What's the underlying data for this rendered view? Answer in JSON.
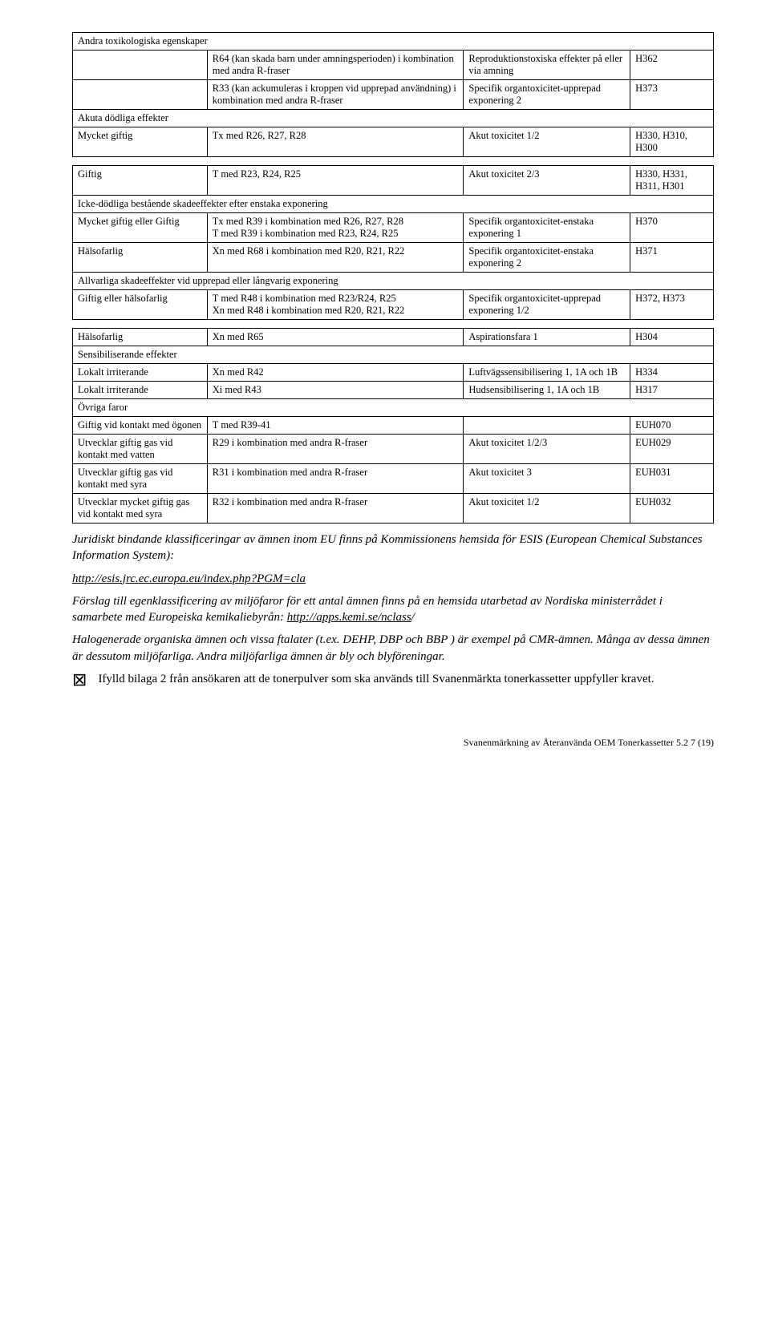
{
  "table1": {
    "header": "Andra toxikologiska egenskaper",
    "rows": [
      {
        "c1": "",
        "c2": "R64 (kan skada barn under amningsperioden) i kombination med andra R-fraser",
        "c3": "Reproduktionstoxiska effekter på eller via amning",
        "c4": "H362"
      },
      {
        "c1": "",
        "c2": "R33 (kan ackumuleras i kroppen vid upprepad användning) i kombination med andra R-fraser",
        "c3": "Specifik organtoxicitet-upprepad exponering 2",
        "c4": "H373"
      }
    ],
    "subheader": "Akuta dödliga effekter",
    "row_sub": {
      "c1": "Mycket giftig",
      "c2": "Tx med R26, R27, R28",
      "c3": "Akut toxicitet 1/2",
      "c4": "H330, H310, H300"
    }
  },
  "table2": {
    "rows": [
      {
        "c1": "Giftig",
        "c2": "T med R23, R24, R25",
        "c3": "Akut toxicitet 2/3",
        "c4": "H330, H331, H311, H301"
      }
    ],
    "subheader": "Icke-dödliga bestående skadeeffekter efter enstaka exponering",
    "rows2": [
      {
        "c1": "Mycket giftig eller Giftig",
        "c2": "Tx med R39 i kombination med R26, R27, R28\nT med R39 i kombination med R23, R24, R25",
        "c3": "Specifik organtoxicitet-enstaka exponering 1",
        "c4": "H370"
      },
      {
        "c1": "Hälsofarlig",
        "c2": "Xn med R68 i kombination med R20, R21, R22",
        "c3": "Specifik organtoxicitet-enstaka exponering 2",
        "c4": "H371"
      }
    ],
    "subheader2": "Allvarliga skadeeffekter vid upprepad eller långvarig exponering",
    "rows3": [
      {
        "c1": "Giftig eller hälsofarlig",
        "c2": "T med R48 i kombination med R23/R24, R25\nXn med R48 i kombination med R20, R21, R22",
        "c3": "Specifik organtoxicitet-upprepad exponering 1/2",
        "c4": "H372, H373"
      }
    ]
  },
  "table3": {
    "rows": [
      {
        "c1": "Hälsofarlig",
        "c2": "Xn med R65",
        "c3": "Aspirationsfara 1",
        "c4": "H304"
      }
    ],
    "subheader": "Sensibiliserande effekter",
    "rows2": [
      {
        "c1": "Lokalt irriterande",
        "c2": "Xn med R42",
        "c3": "Luftvägssensibilisering 1, 1A och 1B",
        "c4": "H334"
      },
      {
        "c1": "Lokalt irriterande",
        "c2": "Xi med R43",
        "c3": "Hudsensibilisering 1, 1A och 1B",
        "c4": "H317"
      }
    ],
    "subheader2": "Övriga faror",
    "rows3": [
      {
        "c1": "Giftig vid kontakt med ögonen",
        "c2": "T med R39-41",
        "c3": "",
        "c4": "EUH070"
      },
      {
        "c1": "Utvecklar giftig gas vid kontakt med vatten",
        "c2": "R29 i kombination med andra R-fraser",
        "c3": "Akut toxicitet 1/2/3",
        "c4": "EUH029"
      },
      {
        "c1": "Utvecklar giftig gas vid kontakt med syra",
        "c2": "R31 i kombination med andra R-fraser",
        "c3": "Akut toxicitet 3",
        "c4": "EUH031"
      },
      {
        "c1": "Utvecklar mycket giftig gas vid kontakt med syra",
        "c2": "R32 i kombination med andra R-fraser",
        "c3": "Akut toxicitet 1/2",
        "c4": "EUH032"
      }
    ]
  },
  "body": {
    "p1": "Juridiskt bindande klassificeringar av ämnen inom EU finns på Kommissionens hemsida för ESIS (European Chemical Substances Information System):",
    "link1": "http://esis.jrc.ec.europa.eu/index.php?PGM=cla",
    "p2a": "Förslag till egenklassificering av miljöfaror för ett antal ämnen finns på en hemsida utarbetad av Nordiska ministerrådet i samarbete med Europeiska kemikaliebyrån: ",
    "link2": "http://apps.kemi.se/nclass",
    "p2b": "/",
    "p3": "Halogenerade organiska ämnen och vissa ftalater (t.ex. DEHP, DBP och BBP ) är exempel på CMR-ämnen. Många av dessa ämnen är dessutom miljöfarliga. Andra miljöfarliga ämnen är bly och blyföreningar.",
    "checkbox_text": "Ifylld bilaga 2 från ansökaren att de tonerpulver som ska används till Svanenmärkta tonerkassetter uppfyller kravet."
  },
  "footer": "Svanenmärkning av Återanvända OEM Tonerkassetter 5.2       7 (19)"
}
